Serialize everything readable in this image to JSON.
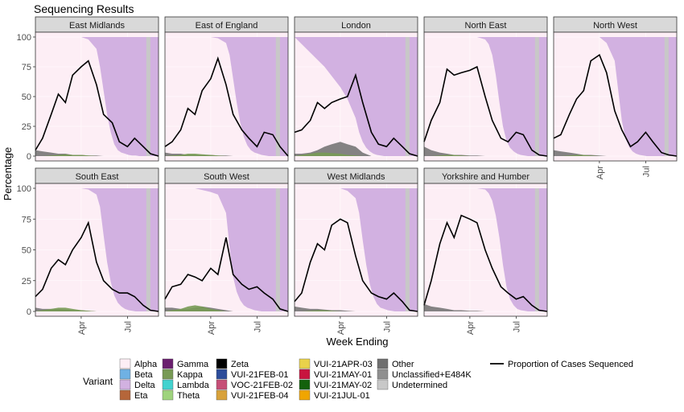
{
  "chart_data": {
    "type": "area",
    "title": "Sequencing Results",
    "xlabel": "Week Ending",
    "ylabel": "Percentage",
    "ylim": [
      0,
      100
    ],
    "yticks": [
      0,
      25,
      50,
      75,
      100
    ],
    "x_range": [
      "2021-01-01",
      "2021-08-31"
    ],
    "x_ticks": [
      {
        "date": "2021-04-01",
        "label": "Apr"
      },
      {
        "date": "2021-07-01",
        "label": "Jul"
      }
    ],
    "grid": true,
    "legend_placement": "bottom",
    "legend": {
      "title": "Variant",
      "columns": [
        [
          {
            "label": "Alpha",
            "color": "#fdeef5"
          },
          {
            "label": "Beta",
            "color": "#6fb1e4"
          },
          {
            "label": "Delta",
            "color": "#d2b1e1"
          },
          {
            "label": "Eta",
            "color": "#b5663a"
          }
        ],
        [
          {
            "label": "Gamma",
            "color": "#6a1f6e"
          },
          {
            "label": "Kappa",
            "color": "#789a55"
          },
          {
            "label": "Lambda",
            "color": "#43d2cf"
          },
          {
            "label": "Theta",
            "color": "#9fd37d"
          }
        ],
        [
          {
            "label": "Zeta",
            "color": "#000000"
          },
          {
            "label": "VUI-21FEB-01",
            "color": "#2c4c9a"
          },
          {
            "label": "VOC-21FEB-02",
            "color": "#c64f77"
          },
          {
            "label": "VUI-21FEB-04",
            "color": "#d8a23b"
          }
        ],
        [
          {
            "label": "VUI-21APR-03",
            "color": "#e9d24a"
          },
          {
            "label": "VUI-21MAY-01",
            "color": "#c8143f"
          },
          {
            "label": "VUI-21MAY-02",
            "color": "#13610c"
          },
          {
            "label": "VUI-21JUL-01",
            "color": "#f0a500"
          }
        ],
        [
          {
            "label": "Other",
            "color": "#6f6f6f"
          },
          {
            "label": "Unclassified+E484K",
            "color": "#8f8f8f"
          },
          {
            "label": "Undetermined",
            "color": "#c8c8c8"
          }
        ]
      ],
      "line_label": "Proportion of Cases Sequenced"
    },
    "delta_dates": [
      "2021-01-01",
      "2021-03-01",
      "2021-04-01",
      "2021-04-15",
      "2021-05-01",
      "2021-05-08",
      "2021-05-15",
      "2021-05-22",
      "2021-05-29",
      "2021-06-05",
      "2021-06-12",
      "2021-06-19",
      "2021-06-26",
      "2021-07-03",
      "2021-07-10",
      "2021-07-17",
      "2021-07-24",
      "2021-07-31",
      "2021-08-31"
    ],
    "line_dates": [
      "2021-01-01",
      "2021-01-15",
      "2021-02-01",
      "2021-02-15",
      "2021-03-01",
      "2021-03-15",
      "2021-04-01",
      "2021-04-15",
      "2021-05-01",
      "2021-05-15",
      "2021-06-01",
      "2021-06-15",
      "2021-07-01",
      "2021-07-15",
      "2021-08-01",
      "2021-08-15",
      "2021-08-31"
    ],
    "series_dates": [
      "2021-01-01",
      "2021-01-15",
      "2021-02-01",
      "2021-02-15",
      "2021-03-01",
      "2021-03-15",
      "2021-04-01",
      "2021-04-15",
      "2021-05-01",
      "2021-05-15",
      "2021-06-01"
    ],
    "facets": [
      {
        "region": "East Midlands",
        "delta": [
          0,
          0,
          0,
          2,
          10,
          25,
          45,
          65,
          80,
          90,
          95,
          97,
          98,
          99,
          99.5,
          99.5,
          100,
          100,
          100
        ],
        "proportion": [
          5,
          15,
          35,
          52,
          45,
          68,
          75,
          80,
          60,
          35,
          28,
          12,
          8,
          15,
          8,
          2,
          0
        ],
        "other": [
          5,
          4,
          3,
          2,
          2,
          1,
          1,
          0.5,
          0.5,
          0,
          0
        ],
        "kappa": [
          0,
          0,
          0.5,
          1,
          1.5,
          1,
          1,
          0.5,
          0,
          0,
          0
        ]
      },
      {
        "region": "East of England",
        "delta": [
          0,
          0,
          0,
          1,
          5,
          15,
          35,
          55,
          72,
          84,
          91,
          95,
          97,
          98,
          99,
          99.5,
          100,
          100,
          100
        ],
        "proportion": [
          8,
          12,
          22,
          40,
          35,
          55,
          65,
          82,
          60,
          35,
          22,
          15,
          8,
          20,
          18,
          8,
          0
        ],
        "other": [
          3,
          2,
          2,
          1,
          1,
          1,
          1,
          0.5,
          0.5,
          0,
          0
        ],
        "kappa": [
          0,
          0.5,
          1,
          2,
          2,
          1.5,
          1,
          0.5,
          0,
          0,
          0
        ]
      },
      {
        "region": "London",
        "delta": [
          0,
          25,
          42,
          52,
          68,
          80,
          88,
          93,
          96,
          98,
          99,
          99.5,
          100,
          100,
          100,
          100,
          100,
          100,
          100
        ],
        "proportion": [
          20,
          22,
          30,
          45,
          40,
          45,
          48,
          50,
          68,
          45,
          20,
          10,
          8,
          15,
          8,
          2,
          0
        ],
        "other": [
          2,
          2,
          3,
          5,
          8,
          10,
          12,
          10,
          8,
          3,
          0
        ],
        "kappa": [
          0,
          1,
          2,
          3,
          3,
          2.5,
          2,
          1,
          0.5,
          0,
          0
        ]
      },
      {
        "region": "North East",
        "delta": [
          0,
          0,
          0,
          0,
          2,
          6,
          15,
          32,
          55,
          75,
          87,
          93,
          96,
          98,
          99,
          99.5,
          100,
          100,
          100
        ],
        "proportion": [
          12,
          30,
          45,
          73,
          68,
          70,
          72,
          75,
          50,
          30,
          15,
          12,
          20,
          18,
          5,
          1,
          0
        ],
        "other": [
          8,
          5,
          3,
          2,
          1,
          1,
          0.5,
          0.5,
          0,
          0,
          0
        ],
        "kappa": [
          0,
          0,
          0.5,
          1,
          1,
          0.5,
          0,
          0,
          0,
          0,
          0
        ]
      },
      {
        "region": "North West",
        "delta": [
          0,
          0,
          0,
          5,
          20,
          45,
          70,
          85,
          92,
          96,
          98,
          99,
          99.5,
          100,
          100,
          100,
          100,
          100,
          100
        ],
        "proportion": [
          15,
          18,
          35,
          48,
          55,
          80,
          85,
          70,
          38,
          22,
          8,
          12,
          20,
          12,
          3,
          1,
          0
        ],
        "other": [
          5,
          4,
          3,
          2,
          1,
          1,
          0.5,
          0,
          0,
          0,
          0
        ],
        "kappa": [
          0,
          0,
          0.5,
          1,
          1,
          0.5,
          0,
          0,
          0,
          0,
          0
        ]
      },
      {
        "region": "South East",
        "delta": [
          0,
          0,
          0,
          1,
          5,
          15,
          38,
          60,
          76,
          87,
          93,
          96,
          98,
          99,
          99.5,
          100,
          100,
          100,
          100
        ],
        "proportion": [
          12,
          18,
          35,
          42,
          38,
          50,
          60,
          72,
          40,
          25,
          18,
          15,
          15,
          12,
          5,
          1,
          0
        ],
        "other": [
          3,
          2,
          2,
          2,
          1.5,
          1,
          1,
          0.5,
          0,
          0,
          0
        ],
        "kappa": [
          0,
          1,
          2,
          3,
          3,
          2,
          1,
          0.5,
          0,
          0,
          0
        ]
      },
      {
        "region": "South West",
        "delta": [
          0,
          0,
          3,
          5,
          20,
          48,
          72,
          84,
          91,
          95,
          97,
          98,
          99,
          99.5,
          100,
          100,
          100,
          100,
          100
        ],
        "proportion": [
          10,
          20,
          22,
          30,
          28,
          25,
          35,
          30,
          60,
          30,
          22,
          18,
          20,
          15,
          10,
          2,
          0
        ],
        "other": [
          3,
          3,
          2,
          2,
          3,
          4,
          3,
          2,
          1,
          0,
          0
        ],
        "kappa": [
          0,
          1,
          2,
          4,
          5,
          4,
          2,
          1,
          0,
          0,
          0
        ]
      },
      {
        "region": "West Midlands",
        "delta": [
          0,
          0,
          0,
          2,
          8,
          20,
          42,
          62,
          78,
          88,
          94,
          97,
          98,
          99,
          99.5,
          100,
          100,
          100,
          100
        ],
        "proportion": [
          8,
          15,
          40,
          55,
          50,
          70,
          75,
          72,
          45,
          25,
          15,
          12,
          10,
          15,
          8,
          1,
          0
        ],
        "other": [
          4,
          3,
          2,
          2,
          1.5,
          1,
          1,
          0.5,
          0,
          0,
          0
        ],
        "kappa": [
          0,
          0,
          0.5,
          1,
          1,
          0.5,
          0,
          0,
          0,
          0,
          0
        ]
      },
      {
        "region": "Yorkshire and Humber",
        "delta": [
          0,
          0,
          0,
          0,
          1,
          4,
          10,
          22,
          40,
          62,
          80,
          90,
          95,
          98,
          99,
          99.5,
          100,
          100,
          100
        ],
        "proportion": [
          5,
          25,
          55,
          72,
          60,
          78,
          75,
          72,
          50,
          35,
          20,
          15,
          10,
          12,
          5,
          1,
          0
        ],
        "other": [
          6,
          4,
          3,
          2,
          1,
          1,
          0.5,
          0.5,
          0,
          0,
          0
        ],
        "kappa": [
          0,
          0,
          0,
          0,
          0,
          0,
          0,
          0,
          0,
          0,
          0
        ]
      }
    ]
  }
}
